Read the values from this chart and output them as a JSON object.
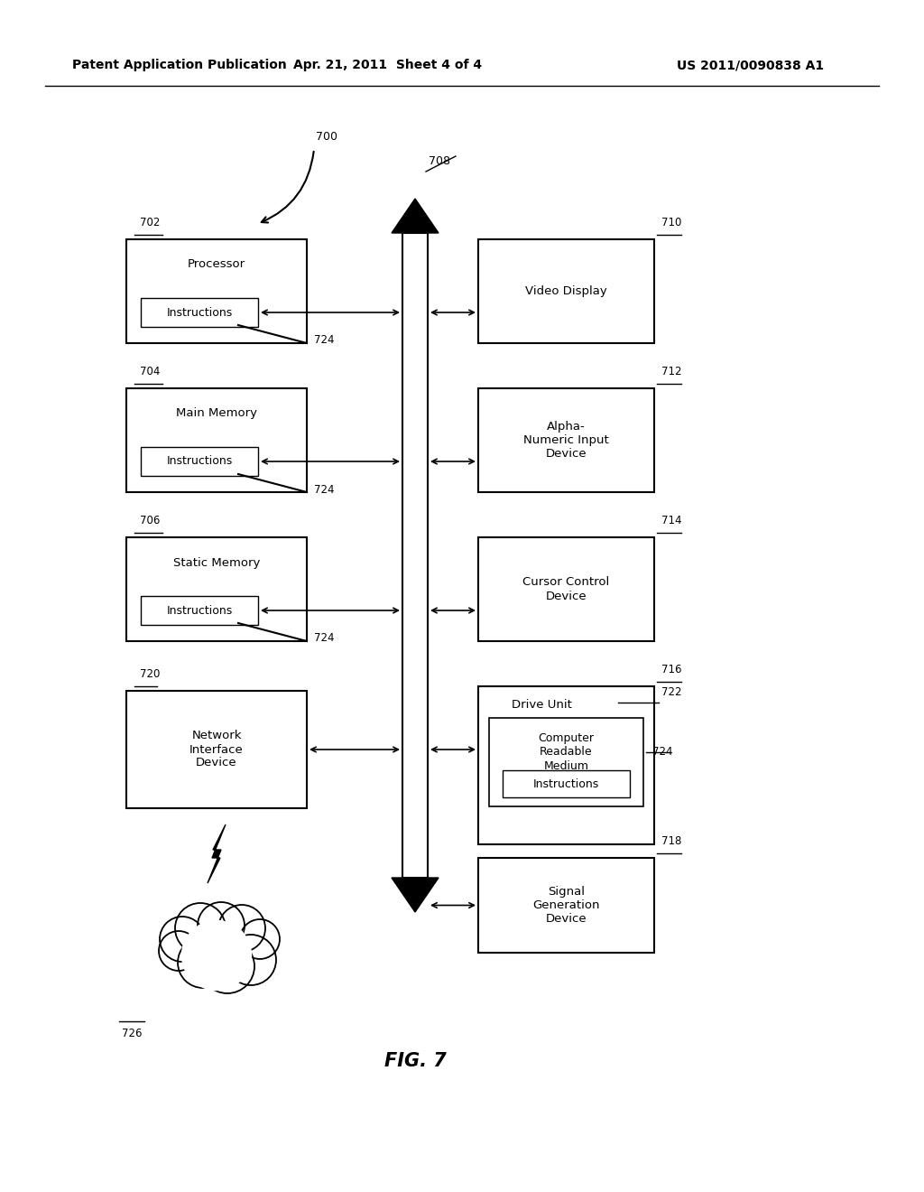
{
  "header_left": "Patent Application Publication",
  "header_center": "Apr. 21, 2011  Sheet 4 of 4",
  "header_right": "US 2011/0090838 A1",
  "fig_label": "FIG. 7",
  "bg_color": "#ffffff",
  "figsize": [
    10.24,
    13.2
  ],
  "dpi": 100
}
